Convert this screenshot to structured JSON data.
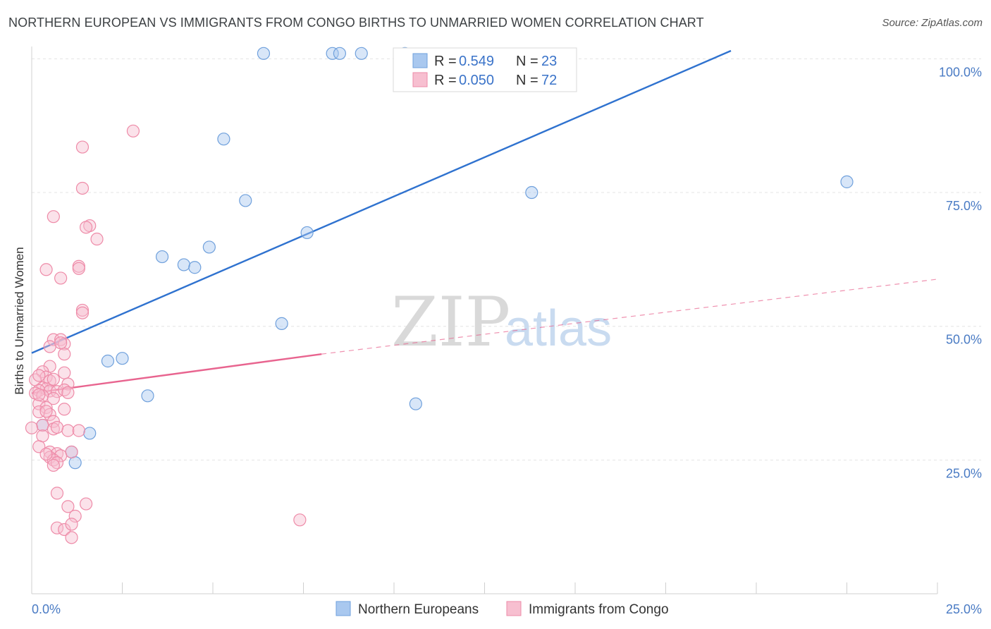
{
  "title": "NORTHERN EUROPEAN VS IMMIGRANTS FROM CONGO BIRTHS TO UNMARRIED WOMEN CORRELATION CHART",
  "source": "Source: ZipAtlas.com",
  "watermark": {
    "zip": "ZIP",
    "atlas": "atlas"
  },
  "chart_data": {
    "type": "scatter",
    "title": "NORTHERN EUROPEAN VS IMMIGRANTS FROM CONGO BIRTHS TO UNMARRIED WOMEN CORRELATION CHART",
    "xlabel": "",
    "ylabel": "Births to Unmarried Women",
    "xlim": [
      0,
      25
    ],
    "ylim": [
      0,
      101.5
    ],
    "x_tick_labels": [
      "0.0%",
      "25.0%"
    ],
    "y_ticks": [
      25,
      50,
      75,
      100
    ],
    "y_tick_labels": [
      "25.0%",
      "50.0%",
      "75.0%",
      "100.0%"
    ],
    "grid": true,
    "legend": {
      "placement": "top-center",
      "entries": [
        {
          "r_label": "R = ",
          "r_value": "0.549",
          "n_label": "N = ",
          "n_value": "23"
        },
        {
          "r_label": "R = ",
          "r_value": "0.050",
          "n_label": "N = ",
          "n_value": "72"
        }
      ]
    },
    "series": [
      {
        "name": "Northern Europeans",
        "color": "#6fa0dc",
        "fill": "#a9c8ef",
        "line_color": "#2f72cf",
        "trend": {
          "x0": 0,
          "y0": 45,
          "x1": 19.3,
          "y1": 101.5,
          "dashed_extension": false
        },
        "points": [
          [
            6.4,
            101.0
          ],
          [
            8.3,
            101.0
          ],
          [
            8.5,
            101.0
          ],
          [
            9.1,
            101.0
          ],
          [
            10.3,
            101.0
          ],
          [
            5.3,
            85.0
          ],
          [
            5.9,
            73.5
          ],
          [
            7.6,
            67.5
          ],
          [
            13.8,
            75.0
          ],
          [
            22.5,
            77.0
          ],
          [
            3.6,
            63.0
          ],
          [
            4.2,
            61.5
          ],
          [
            4.5,
            61.0
          ],
          [
            4.9,
            64.8
          ],
          [
            6.9,
            50.5
          ],
          [
            2.1,
            43.5
          ],
          [
            2.5,
            44.0
          ],
          [
            3.2,
            37.0
          ],
          [
            10.6,
            35.5
          ],
          [
            1.6,
            30.0
          ],
          [
            1.1,
            26.5
          ],
          [
            1.2,
            24.5
          ],
          [
            0.3,
            31.5
          ]
        ]
      },
      {
        "name": "Immigrants from Congo",
        "color": "#ee8ba8",
        "fill": "#f7bfd0",
        "line_color": "#e8648f",
        "trend": {
          "x0": 0,
          "y0": 37.5,
          "x1": 8.0,
          "y1": 44.8,
          "dash_x1": 25.0,
          "dash_y1": 58.8
        },
        "points": [
          [
            2.8,
            86.5
          ],
          [
            1.4,
            83.5
          ],
          [
            1.4,
            75.8
          ],
          [
            0.6,
            70.5
          ],
          [
            1.6,
            68.8
          ],
          [
            1.8,
            66.3
          ],
          [
            0.4,
            60.6
          ],
          [
            1.3,
            61.2
          ],
          [
            1.3,
            60.8
          ],
          [
            0.8,
            59.0
          ],
          [
            1.4,
            53.0
          ],
          [
            1.4,
            52.5
          ],
          [
            0.6,
            47.5
          ],
          [
            0.8,
            47.5
          ],
          [
            0.9,
            46.7
          ],
          [
            0.5,
            46.2
          ],
          [
            0.9,
            44.8
          ],
          [
            0.5,
            42.5
          ],
          [
            0.3,
            41.5
          ],
          [
            0.9,
            41.3
          ],
          [
            0.4,
            40.5
          ],
          [
            0.1,
            40.0
          ],
          [
            0.2,
            40.8
          ],
          [
            0.5,
            39.8
          ],
          [
            1.0,
            39.2
          ],
          [
            0.3,
            38.5
          ],
          [
            0.4,
            38.3
          ],
          [
            0.2,
            38.0
          ],
          [
            0.5,
            37.9
          ],
          [
            0.7,
            37.8
          ],
          [
            0.1,
            37.5
          ],
          [
            0.3,
            37.0
          ],
          [
            0.6,
            36.5
          ],
          [
            0.2,
            35.5
          ],
          [
            0.4,
            34.8
          ],
          [
            0.9,
            34.5
          ],
          [
            0.2,
            34.0
          ],
          [
            0.5,
            33.5
          ],
          [
            0.6,
            32.2
          ],
          [
            0.3,
            31.5
          ],
          [
            0.0,
            31.0
          ],
          [
            0.6,
            30.8
          ],
          [
            1.0,
            30.5
          ],
          [
            1.3,
            30.5
          ],
          [
            0.3,
            29.5
          ],
          [
            0.2,
            27.5
          ],
          [
            1.1,
            26.5
          ],
          [
            0.5,
            26.5
          ],
          [
            0.7,
            26.2
          ],
          [
            0.8,
            25.8
          ],
          [
            0.5,
            25.5
          ],
          [
            0.6,
            25.0
          ],
          [
            0.7,
            24.5
          ],
          [
            0.6,
            24.0
          ],
          [
            0.7,
            18.8
          ],
          [
            1.0,
            16.3
          ],
          [
            1.5,
            16.8
          ],
          [
            1.2,
            14.5
          ],
          [
            0.7,
            12.3
          ],
          [
            0.9,
            12.0
          ],
          [
            1.1,
            13.0
          ],
          [
            1.1,
            10.5
          ],
          [
            7.4,
            13.8
          ],
          [
            0.8,
            46.9
          ],
          [
            0.4,
            34.1
          ],
          [
            0.6,
            40.1
          ],
          [
            0.2,
            37.2
          ],
          [
            0.9,
            38.1
          ],
          [
            1.0,
            37.6
          ],
          [
            0.4,
            26.1
          ],
          [
            0.7,
            31.1
          ],
          [
            1.5,
            68.5
          ]
        ]
      }
    ]
  }
}
